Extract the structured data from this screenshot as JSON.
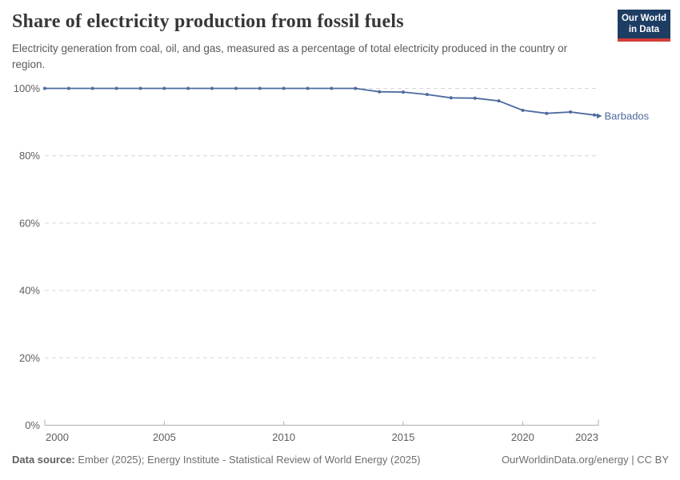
{
  "header": {
    "title": "Share of electricity production from fossil fuels",
    "subtitle": "Electricity generation from coal, oil, and gas, measured as a percentage of total electricity produced in the country or region.",
    "logo": {
      "line1": "Our World",
      "line2": "in Data",
      "bg_color": "#1d3d63",
      "stripe_color": "#d13d38"
    }
  },
  "chart_data": {
    "type": "line",
    "title": "Share of electricity production from fossil fuels",
    "xlabel": "",
    "ylabel": "",
    "xlim": [
      2000,
      2023
    ],
    "ylim": [
      0,
      100
    ],
    "x_ticks": [
      2000,
      2005,
      2010,
      2015,
      2020,
      2023
    ],
    "y_ticks": [
      0,
      20,
      40,
      60,
      80,
      100
    ],
    "y_tick_suffix": "%",
    "grid": true,
    "legend_position": "end-of-line-label",
    "colors": {
      "grid": "#d6d6d6",
      "axis": "#afafaf",
      "tick_label": "#5e5e5e"
    },
    "series": [
      {
        "name": "Barbados",
        "color": "#4c6a9c",
        "x": [
          2000,
          2001,
          2002,
          2003,
          2004,
          2005,
          2006,
          2007,
          2008,
          2009,
          2010,
          2011,
          2012,
          2013,
          2014,
          2015,
          2016,
          2017,
          2018,
          2019,
          2020,
          2021,
          2022,
          2023
        ],
        "values": [
          100,
          100,
          100,
          100,
          100,
          100,
          100,
          100,
          100,
          100,
          100,
          100,
          100,
          100,
          99.0,
          98.9,
          98.2,
          97.2,
          97.1,
          96.3,
          93.5,
          92.6,
          93.0,
          92.1
        ]
      }
    ]
  },
  "footer": {
    "source_label": "Data source:",
    "source_text": "Ember (2025); Energy Institute - Statistical Review of World Energy (2025)",
    "credit": "OurWorldinData.org/energy | CC BY"
  }
}
